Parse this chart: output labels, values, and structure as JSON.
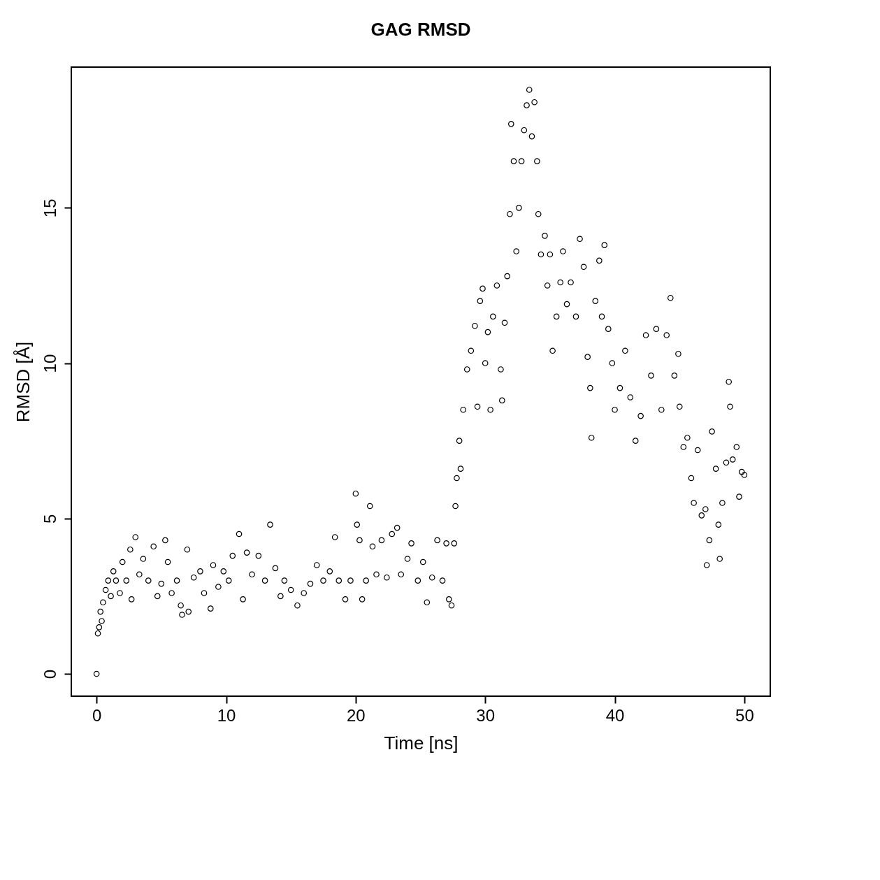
{
  "chart_data": {
    "type": "scatter",
    "title": "GAG RMSD",
    "xlabel": "Time [ns]",
    "ylabel": "RMSD [Å]",
    "marker": "circle",
    "grid": false,
    "xlim": [
      -1.95,
      52
    ],
    "ylim": [
      -0.72,
      19.53
    ],
    "xticks": [
      0,
      10,
      20,
      30,
      40,
      50
    ],
    "yticks": [
      0,
      5,
      10,
      15
    ],
    "x": [
      0,
      0.1,
      0.2,
      0.3,
      0.4,
      0.5,
      0.7,
      0.9,
      1.1,
      1.3,
      1.5,
      1.8,
      2.0,
      2.3,
      2.6,
      2.7,
      3.0,
      3.3,
      3.6,
      4.0,
      4.4,
      4.7,
      5.0,
      5.3,
      5.5,
      5.8,
      6.2,
      6.5,
      6.6,
      7.0,
      7.1,
      7.5,
      8.0,
      8.3,
      8.8,
      9.0,
      9.4,
      9.8,
      10.2,
      10.5,
      11.0,
      11.3,
      11.6,
      12.0,
      12.5,
      13.0,
      13.4,
      13.8,
      14.2,
      14.5,
      15.0,
      15.5,
      16.0,
      16.5,
      17.0,
      17.5,
      18.0,
      18.4,
      18.7,
      19.2,
      19.6,
      20.0,
      20.1,
      20.3,
      20.5,
      20.8,
      21.1,
      21.3,
      21.6,
      22.0,
      22.4,
      22.8,
      23.2,
      23.5,
      24.0,
      24.3,
      24.8,
      25.2,
      25.5,
      25.9,
      26.3,
      26.7,
      27.0,
      27.2,
      27.4,
      27.6,
      27.7,
      27.8,
      28.0,
      28.1,
      28.3,
      28.6,
      28.9,
      29.2,
      29.4,
      29.6,
      29.8,
      30.0,
      30.2,
      30.4,
      30.6,
      30.9,
      31.2,
      31.3,
      31.5,
      31.7,
      31.9,
      32.0,
      32.2,
      32.4,
      32.6,
      32.8,
      33.0,
      33.2,
      33.4,
      33.6,
      33.8,
      34.0,
      34.1,
      34.3,
      34.6,
      34.8,
      35.0,
      35.2,
      35.5,
      35.8,
      36.0,
      36.3,
      36.6,
      37.0,
      37.3,
      37.6,
      37.9,
      38.1,
      38.2,
      38.5,
      38.8,
      39.0,
      39.2,
      39.5,
      39.8,
      40.0,
      40.4,
      40.8,
      41.2,
      41.6,
      42.0,
      42.4,
      42.8,
      43.2,
      43.6,
      44.0,
      44.3,
      44.6,
      44.9,
      45.0,
      45.3,
      45.6,
      45.9,
      46.1,
      46.4,
      46.7,
      47.0,
      47.1,
      47.3,
      47.5,
      47.8,
      48.0,
      48.1,
      48.3,
      48.6,
      48.8,
      48.9,
      49.1,
      49.4,
      49.6,
      49.8,
      50.0
    ],
    "values": [
      0,
      1.3,
      1.5,
      2.0,
      1.7,
      2.3,
      2.7,
      3.0,
      2.5,
      3.3,
      3.0,
      2.6,
      3.6,
      3.0,
      4.0,
      2.4,
      4.4,
      3.2,
      3.7,
      3.0,
      4.1,
      2.5,
      2.9,
      4.3,
      3.6,
      2.6,
      3.0,
      2.2,
      1.9,
      4.0,
      2.0,
      3.1,
      3.3,
      2.6,
      2.1,
      3.5,
      2.8,
      3.3,
      3.0,
      3.8,
      4.5,
      2.4,
      3.9,
      3.2,
      3.8,
      3.0,
      4.8,
      3.4,
      2.5,
      3.0,
      2.7,
      2.2,
      2.6,
      2.9,
      3.5,
      3.0,
      3.3,
      4.4,
      3.0,
      2.4,
      3.0,
      5.8,
      4.8,
      4.3,
      2.4,
      3.0,
      5.4,
      4.1,
      3.2,
      4.3,
      3.1,
      4.5,
      4.7,
      3.2,
      3.7,
      4.2,
      3.0,
      3.6,
      2.3,
      3.1,
      4.3,
      3.0,
      4.2,
      2.4,
      2.2,
      4.2,
      5.4,
      6.3,
      7.5,
      6.6,
      8.5,
      9.8,
      10.4,
      11.2,
      8.6,
      12.0,
      12.4,
      10.0,
      11.0,
      8.5,
      11.5,
      12.5,
      9.8,
      8.8,
      11.3,
      12.8,
      14.8,
      17.7,
      16.5,
      13.6,
      15.0,
      16.5,
      17.5,
      18.3,
      18.8,
      17.3,
      18.4,
      16.5,
      14.8,
      13.5,
      14.1,
      12.5,
      13.5,
      10.4,
      11.5,
      12.6,
      13.6,
      11.9,
      12.6,
      11.5,
      14.0,
      13.1,
      10.2,
      9.2,
      7.6,
      12.0,
      13.3,
      11.5,
      13.8,
      11.1,
      10.0,
      8.5,
      9.2,
      10.4,
      8.9,
      7.5,
      8.3,
      10.9,
      9.6,
      11.1,
      8.5,
      10.9,
      12.1,
      9.6,
      10.3,
      8.6,
      7.3,
      7.6,
      6.3,
      5.5,
      7.2,
      5.1,
      5.3,
      3.5,
      4.3,
      7.8,
      6.6,
      4.8,
      3.7,
      5.5,
      6.8,
      9.4,
      8.6,
      6.9,
      7.3,
      5.7,
      6.5,
      6.4
    ],
    "color": "#000000"
  }
}
